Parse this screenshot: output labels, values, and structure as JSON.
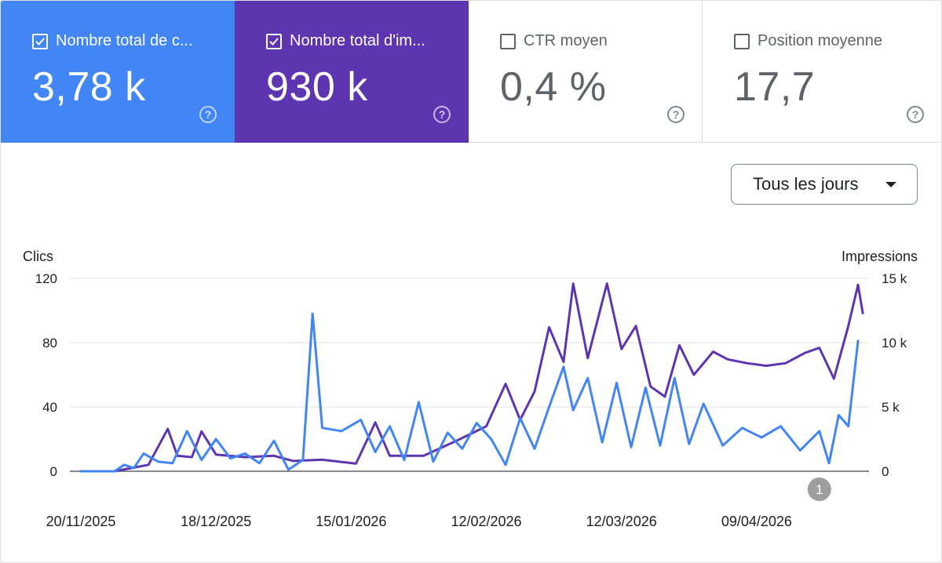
{
  "cards": [
    {
      "label": "Nombre total de c...",
      "value": "3,78 k",
      "checked": true
    },
    {
      "label": "Nombre total d'im...",
      "value": "930 k",
      "checked": true
    },
    {
      "label": "CTR moyen",
      "value": "0,4 %",
      "checked": false
    },
    {
      "label": "Position moyenne",
      "value": "17,7",
      "checked": false
    }
  ],
  "help_symbol": "?",
  "dropdown": {
    "label": "Tous les jours"
  },
  "annotation": {
    "label": "1",
    "date": "22/04/2026"
  },
  "colors": {
    "clicks": "#4285f4",
    "impressions": "#5e35b1",
    "grid": "#e0e0e0",
    "axis": "#5f6368"
  },
  "chart_data": {
    "type": "line",
    "xlabel": "",
    "ylabel_left": "Clics",
    "ylabel_right": "Impressions",
    "y_left_ticks": [
      "0",
      "40",
      "80",
      "120"
    ],
    "y_right_ticks": [
      "0",
      "5 k",
      "10 k",
      "15 k"
    ],
    "ylim_left": [
      0,
      120
    ],
    "ylim_right": [
      0,
      15000
    ],
    "x_tick_labels": [
      "20/11/2025",
      "18/12/2025",
      "15/01/2026",
      "12/02/2026",
      "12/03/2026",
      "09/04/2026"
    ],
    "x_start": "20/11/2025",
    "x_end": "30/04/2026",
    "grid": true,
    "series": [
      {
        "name": "Nombre total de clics",
        "axis": "left",
        "color": "#4285f4",
        "points": [
          [
            "20/11/2025",
            0
          ],
          [
            "27/11/2025",
            0
          ],
          [
            "29/11/2025",
            4
          ],
          [
            "01/12/2025",
            2
          ],
          [
            "03/12/2025",
            11
          ],
          [
            "06/12/2025",
            6
          ],
          [
            "09/12/2025",
            5
          ],
          [
            "12/12/2025",
            25
          ],
          [
            "15/12/2025",
            7
          ],
          [
            "18/12/2025",
            20
          ],
          [
            "21/12/2025",
            8
          ],
          [
            "24/12/2025",
            11
          ],
          [
            "27/12/2025",
            5
          ],
          [
            "30/12/2025",
            19
          ],
          [
            "02/01/2026",
            1
          ],
          [
            "05/01/2026",
            7
          ],
          [
            "07/01/2026",
            98
          ],
          [
            "09/01/2026",
            27
          ],
          [
            "13/01/2026",
            25
          ],
          [
            "17/01/2026",
            32
          ],
          [
            "20/01/2026",
            12
          ],
          [
            "23/01/2026",
            28
          ],
          [
            "26/01/2026",
            7
          ],
          [
            "29/01/2026",
            43
          ],
          [
            "01/02/2026",
            6
          ],
          [
            "04/02/2026",
            24
          ],
          [
            "07/02/2026",
            14
          ],
          [
            "10/02/2026",
            30
          ],
          [
            "13/02/2026",
            20
          ],
          [
            "16/02/2026",
            4
          ],
          [
            "19/02/2026",
            33
          ],
          [
            "22/02/2026",
            14
          ],
          [
            "25/02/2026",
            40
          ],
          [
            "28/02/2026",
            65
          ],
          [
            "02/03/2026",
            38
          ],
          [
            "05/03/2026",
            58
          ],
          [
            "08/03/2026",
            18
          ],
          [
            "11/03/2026",
            55
          ],
          [
            "14/03/2026",
            15
          ],
          [
            "17/03/2026",
            52
          ],
          [
            "20/03/2026",
            16
          ],
          [
            "23/03/2026",
            58
          ],
          [
            "26/03/2026",
            17
          ],
          [
            "29/03/2026",
            42
          ],
          [
            "02/04/2026",
            16
          ],
          [
            "06/04/2026",
            27
          ],
          [
            "10/04/2026",
            21
          ],
          [
            "14/04/2026",
            28
          ],
          [
            "18/04/2026",
            13
          ],
          [
            "22/04/2026",
            25
          ],
          [
            "24/04/2026",
            5
          ],
          [
            "26/04/2026",
            35
          ],
          [
            "28/04/2026",
            28
          ],
          [
            "30/04/2026",
            81
          ]
        ]
      },
      {
        "name": "Nombre total d'impressions",
        "axis": "right",
        "color": "#5e35b1",
        "points": [
          [
            "20/11/2025",
            0
          ],
          [
            "27/11/2025",
            0
          ],
          [
            "04/12/2025",
            500
          ],
          [
            "08/12/2025",
            3300
          ],
          [
            "10/12/2025",
            1200
          ],
          [
            "13/12/2025",
            1100
          ],
          [
            "15/12/2025",
            3100
          ],
          [
            "18/12/2025",
            1300
          ],
          [
            "24/12/2025",
            1100
          ],
          [
            "30/12/2025",
            1200
          ],
          [
            "03/01/2026",
            800
          ],
          [
            "09/01/2026",
            900
          ],
          [
            "16/01/2026",
            600
          ],
          [
            "20/01/2026",
            3800
          ],
          [
            "23/01/2026",
            1200
          ],
          [
            "30/01/2026",
            1200
          ],
          [
            "06/02/2026",
            2400
          ],
          [
            "12/02/2026",
            3500
          ],
          [
            "16/02/2026",
            6800
          ],
          [
            "19/02/2026",
            4000
          ],
          [
            "22/02/2026",
            6200
          ],
          [
            "25/02/2026",
            11200
          ],
          [
            "28/02/2026",
            8500
          ],
          [
            "02/03/2026",
            14600
          ],
          [
            "05/03/2026",
            8800
          ],
          [
            "09/03/2026",
            14600
          ],
          [
            "12/03/2026",
            9500
          ],
          [
            "15/03/2026",
            11300
          ],
          [
            "18/03/2026",
            6600
          ],
          [
            "21/03/2026",
            5800
          ],
          [
            "24/03/2026",
            9800
          ],
          [
            "27/03/2026",
            7500
          ],
          [
            "31/03/2026",
            9300
          ],
          [
            "03/04/2026",
            8700
          ],
          [
            "07/04/2026",
            8400
          ],
          [
            "11/04/2026",
            8200
          ],
          [
            "15/04/2026",
            8400
          ],
          [
            "19/04/2026",
            9200
          ],
          [
            "22/04/2026",
            9600
          ],
          [
            "25/04/2026",
            7200
          ],
          [
            "28/04/2026",
            11300
          ],
          [
            "30/04/2026",
            14500
          ],
          [
            "01/05/2026",
            12300
          ]
        ]
      }
    ]
  }
}
